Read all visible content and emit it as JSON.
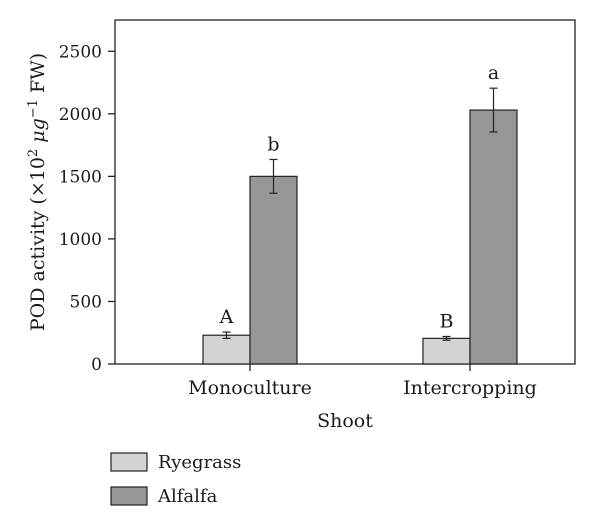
{
  "chart_data": {
    "type": "bar",
    "categories": [
      "Monoculture",
      "Intercropping"
    ],
    "xlabel": "Shoot",
    "ylabel": {
      "prefix": "POD activity (×10",
      "sup1": "2",
      "mid": " μg",
      "sup2": "−1",
      "suffix": " FW)"
    },
    "ylim": [
      0,
      2750
    ],
    "yticks": [
      0,
      500,
      1000,
      1500,
      2000,
      2500
    ],
    "grid": false,
    "legend_position": "bottom-left",
    "series": [
      {
        "name": "Ryegrass",
        "color": "#d3d3d3",
        "values": [
          230,
          205
        ],
        "errors": [
          25,
          15
        ],
        "labels": [
          "A",
          "B"
        ]
      },
      {
        "name": "Alfalfa",
        "color": "#969696",
        "values": [
          1500,
          2030
        ],
        "errors": [
          135,
          175
        ],
        "labels": [
          "b",
          "a"
        ]
      }
    ]
  }
}
